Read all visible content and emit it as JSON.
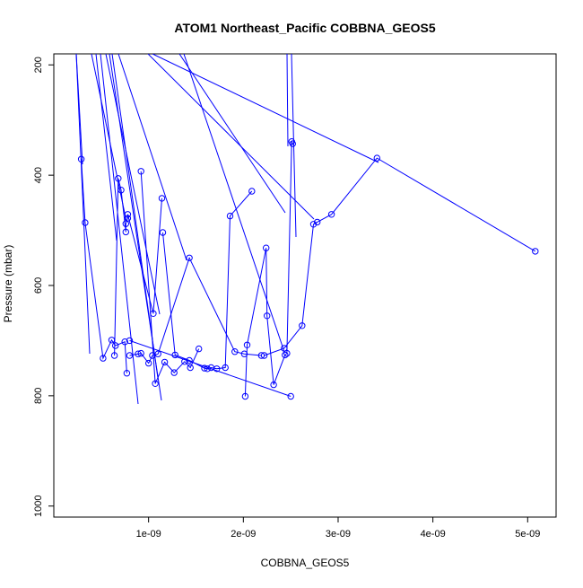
{
  "chart_data": {
    "type": "scatter",
    "title": "ATOM1 Northeast_Pacific COBBNA_GEOS5",
    "xlabel": "COBBNA_GEOS5",
    "ylabel": "Pressure (mbar)",
    "xlim": [
      0,
      5.3e-09
    ],
    "ylim": [
      1020,
      180
    ],
    "y_reversed": true,
    "x_ticks": [
      {
        "value": 1e-09,
        "label": "1e-09"
      },
      {
        "value": 2e-09,
        "label": "2e-09"
      },
      {
        "value": 3e-09,
        "label": "3e-09"
      },
      {
        "value": 4e-09,
        "label": "4e-09"
      },
      {
        "value": 5e-09,
        "label": "5e-09"
      }
    ],
    "y_ticks": [
      {
        "value": 200,
        "label": "200"
      },
      {
        "value": 400,
        "label": "400"
      },
      {
        "value": 600,
        "label": "600"
      },
      {
        "value": 800,
        "label": "800"
      },
      {
        "value": 1000,
        "label": "1000"
      }
    ],
    "color": "#0000ff",
    "grid": false,
    "series": [
      {
        "x": [
          2.9e-10,
          3.3e-10,
          5.2e-10,
          6.1e-10,
          6.5e-10,
          7.5e-10,
          7.7e-10
        ],
        "y": [
          371,
          486,
          732,
          699,
          709,
          702,
          759
        ]
      },
      {
        "x": [
          6.4e-10,
          6.8e-10,
          7.1e-10,
          7.6e-10,
          7.6e-10,
          7.8e-10,
          7.8e-10,
          1.05e-09,
          1.14e-09
        ],
        "y": [
          727,
          406,
          427,
          503,
          488,
          478,
          471,
          651,
          442
        ]
      },
      {
        "x": [
          9.2e-10,
          1.07e-09,
          1.17e-09,
          1.27e-09,
          1.38e-09,
          1.44e-09,
          1.53e-09
        ],
        "y": [
          393,
          778,
          739,
          758,
          738,
          749,
          715
        ]
      },
      {
        "x": [
          1.15e-09,
          1.28e-09,
          1.43e-09,
          1.59e-09,
          1.62e-09,
          1.66e-09,
          1.72e-09,
          1.81e-09,
          1.86e-09,
          2.09e-09
        ],
        "y": [
          504,
          726,
          736,
          750,
          751,
          749,
          751,
          749,
          474,
          429
        ]
      },
      {
        "x": [
          8e-10,
          8.9e-10,
          9.2e-10,
          1e-09,
          1.04e-09,
          1.1e-09,
          1.43e-09,
          1.91e-09,
          2.01e-09,
          2.19e-09
        ],
        "y": [
          727,
          724,
          723,
          741,
          727,
          724,
          550,
          720,
          724,
          727
        ]
      },
      {
        "x": [
          2.02e-09,
          2.04e-09,
          2.24e-09,
          2.25e-09,
          2.32e-09,
          2.44e-09,
          2.46e-09,
          2.51e-09,
          2.52e-09
        ],
        "y": [
          801,
          708,
          532,
          655,
          780,
          726,
          723,
          339,
          343
        ]
      },
      {
        "x": [
          2.22e-09,
          2.43e-09,
          2.62e-09,
          2.74e-09,
          2.78e-09,
          2.93e-09,
          3.41e-09,
          5.08e-09
        ],
        "y": [
          727,
          714,
          673,
          489,
          485,
          471,
          369,
          538
        ]
      },
      {
        "x": [
          8e-10,
          2.5e-09
        ],
        "y": [
          700,
          801
        ]
      }
    ]
  }
}
